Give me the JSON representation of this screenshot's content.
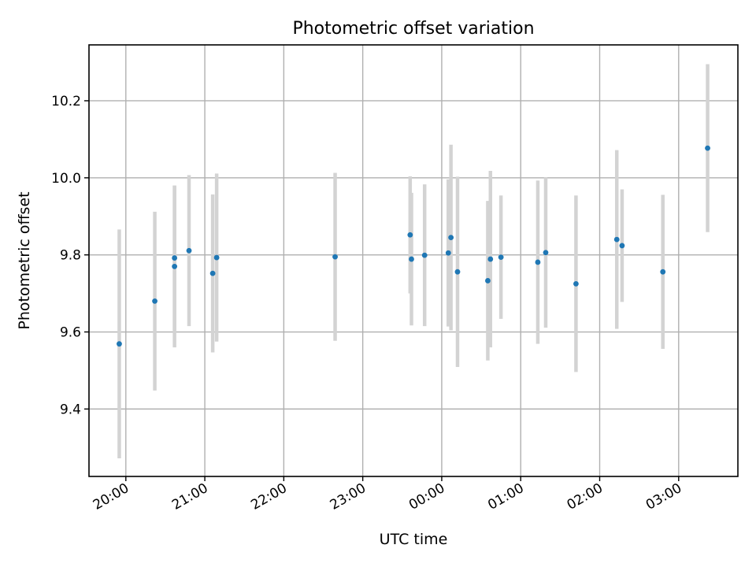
{
  "chart_data": {
    "type": "scatter",
    "title": "Photometric offset variation",
    "xlabel": "UTC time",
    "ylabel": "Photometric offset",
    "grid": true,
    "x_ticks": [
      "20:00",
      "21:00",
      "22:00",
      "23:00",
      "00:00",
      "01:00",
      "02:00",
      "03:00"
    ],
    "y_ticks": [
      "9.4",
      "9.6",
      "9.8",
      "10.0",
      "10.2"
    ],
    "x_axis_start": "19:00",
    "xlim": [
      "19:32",
      "03:45"
    ],
    "ylim": [
      9.225,
      10.345
    ],
    "colors": {
      "point": "#1f77b4",
      "errorbar": "#d3d3d3",
      "grid": "#b0b0b0"
    },
    "points": [
      {
        "x": "19:55",
        "y": 9.569,
        "err": 0.297
      },
      {
        "x": "20:22",
        "y": 9.68,
        "err": 0.232
      },
      {
        "x": "20:37",
        "y": 9.792,
        "err": 0.188
      },
      {
        "x": "20:37",
        "y": 9.77,
        "err": 0.21
      },
      {
        "x": "20:48",
        "y": 9.811,
        "err": 0.196
      },
      {
        "x": "21:06",
        "y": 9.752,
        "err": 0.205
      },
      {
        "x": "21:09",
        "y": 9.793,
        "err": 0.218
      },
      {
        "x": "22:39",
        "y": 9.795,
        "err": 0.218
      },
      {
        "x": "23:36",
        "y": 9.852,
        "err": 0.152
      },
      {
        "x": "23:37",
        "y": 9.789,
        "err": 0.172
      },
      {
        "x": "23:47",
        "y": 9.799,
        "err": 0.184
      },
      {
        "x": "00:05",
        "y": 9.805,
        "err": 0.191
      },
      {
        "x": "00:07",
        "y": 9.845,
        "err": 0.241
      },
      {
        "x": "00:12",
        "y": 9.756,
        "err": 0.247
      },
      {
        "x": "00:35",
        "y": 9.733,
        "err": 0.207
      },
      {
        "x": "00:37",
        "y": 9.789,
        "err": 0.229
      },
      {
        "x": "00:45",
        "y": 9.794,
        "err": 0.16
      },
      {
        "x": "01:13",
        "y": 9.781,
        "err": 0.212
      },
      {
        "x": "01:19",
        "y": 9.806,
        "err": 0.195
      },
      {
        "x": "01:42",
        "y": 9.725,
        "err": 0.229
      },
      {
        "x": "02:13",
        "y": 9.84,
        "err": 0.232
      },
      {
        "x": "02:17",
        "y": 9.824,
        "err": 0.146
      },
      {
        "x": "02:48",
        "y": 9.756,
        "err": 0.2
      },
      {
        "x": "03:22",
        "y": 10.077,
        "err": 0.218
      }
    ]
  }
}
